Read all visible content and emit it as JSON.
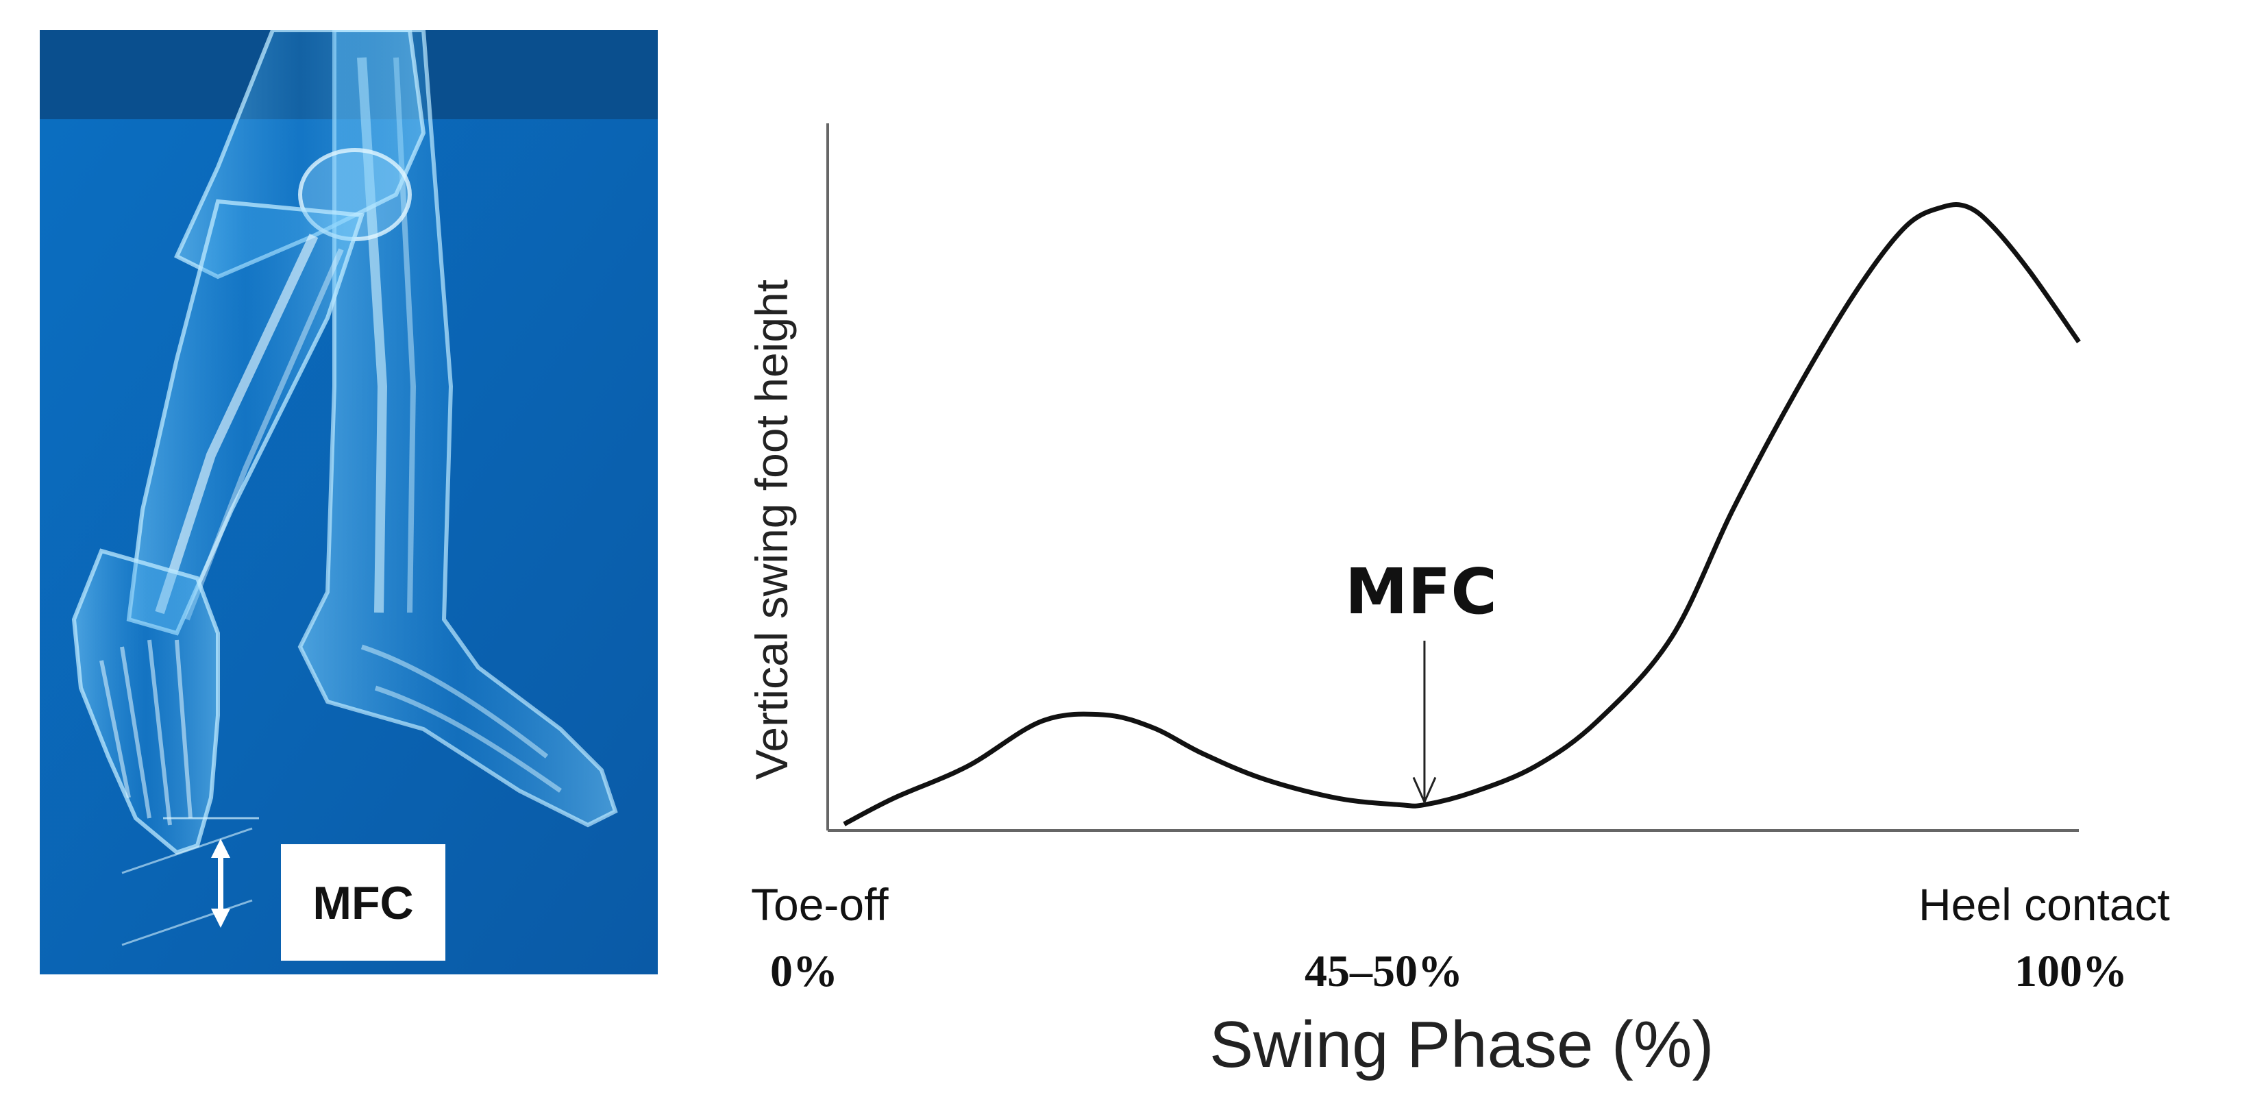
{
  "illustration": {
    "mfc_label": "MFC",
    "colors": {
      "background": "#0b63b3",
      "top_band": "#0a4f8e",
      "bone": "#cfefff"
    }
  },
  "chart_data": {
    "type": "line",
    "ylabel": "Vertical swing foot height",
    "xlabel": "Swing Phase (%)",
    "x_landmarks": [
      {
        "event": "Toe-off",
        "value": "0%",
        "x": 0
      },
      {
        "event": "",
        "value": "45–50%",
        "x": 47
      },
      {
        "event": "Heel contact",
        "value": "100%",
        "x": 100
      }
    ],
    "series": [
      {
        "x": [
          0,
          4,
          10,
          16,
          21,
          25,
          29,
          34,
          40,
          45,
          47,
          51,
          56,
          61,
          67,
          72,
          77,
          82,
          86,
          89,
          91,
          93,
          96,
          100
        ],
        "y": [
          0.01,
          0.05,
          0.1,
          0.17,
          0.18,
          0.16,
          0.12,
          0.08,
          0.05,
          0.04,
          0.04,
          0.06,
          0.1,
          0.17,
          0.3,
          0.5,
          0.68,
          0.84,
          0.94,
          0.97,
          0.97,
          0.94,
          0.87,
          0.76
        ]
      }
    ],
    "xlim": [
      0,
      100
    ],
    "ylim": [
      0,
      1.1
    ],
    "annotations": [
      {
        "text": "MFC",
        "x": 47
      }
    ],
    "grid": false
  }
}
